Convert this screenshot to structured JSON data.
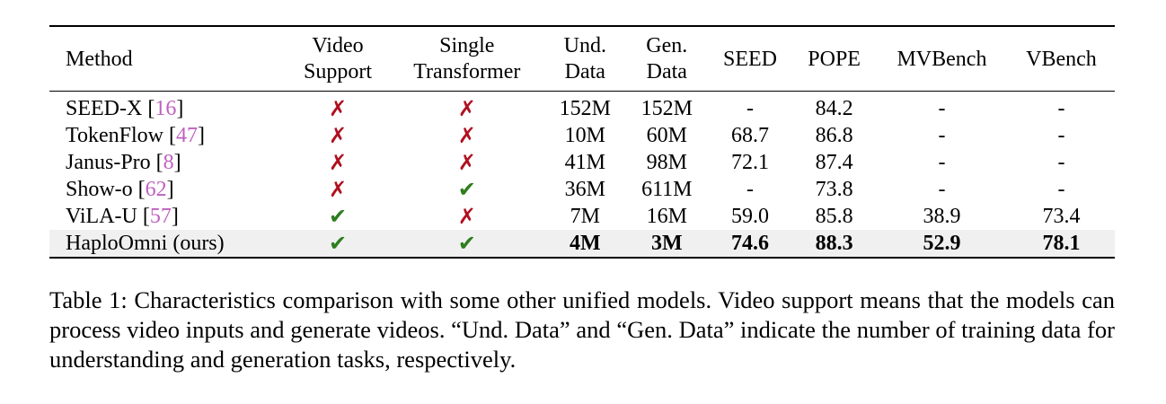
{
  "table": {
    "headers": [
      {
        "line1": "Method",
        "line2": ""
      },
      {
        "line1": "Video",
        "line2": "Support"
      },
      {
        "line1": "Single",
        "line2": "Transformer"
      },
      {
        "line1": "Und.",
        "line2": "Data"
      },
      {
        "line1": "Gen.",
        "line2": "Data"
      },
      {
        "line1": "SEED",
        "line2": ""
      },
      {
        "line1": "POPE",
        "line2": ""
      },
      {
        "line1": "MVBench",
        "line2": ""
      },
      {
        "line1": "VBench",
        "line2": ""
      }
    ],
    "rows": [
      {
        "method": "SEED-X [",
        "ref": "16",
        "close": "]",
        "video": "✗",
        "single": "✗",
        "und": "152M",
        "gen": "152M",
        "seed": "-",
        "pope": "84.2",
        "mvbench": "-",
        "vbench": "-"
      },
      {
        "method": "TokenFlow [",
        "ref": "47",
        "close": "]",
        "video": "✗",
        "single": "✗",
        "und": "10M",
        "gen": "60M",
        "seed": "68.7",
        "pope": "86.8",
        "mvbench": "-",
        "vbench": "-"
      },
      {
        "method": "Janus-Pro [",
        "ref": "8",
        "close": "]",
        "video": "✗",
        "single": "✗",
        "und": "41M",
        "gen": "98M",
        "seed": "72.1",
        "pope": "87.4",
        "mvbench": "-",
        "vbench": "-"
      },
      {
        "method": "Show-o [",
        "ref": "62",
        "close": "]",
        "video": "✗",
        "single": "✔",
        "und": "36M",
        "gen": "611M",
        "seed": "-",
        "pope": "73.8",
        "mvbench": "-",
        "vbench": "-"
      },
      {
        "method": "ViLA-U [",
        "ref": "57",
        "close": "]",
        "video": "✔",
        "single": "✗",
        "und": "7M",
        "gen": "16M",
        "seed": "59.0",
        "pope": "85.8",
        "mvbench": "38.9",
        "vbench": "73.4"
      },
      {
        "method": "HaploOmni (ours)",
        "ref": "",
        "close": "",
        "video": "✔",
        "single": "✔",
        "und": "4M",
        "gen": "3M",
        "seed": "74.6",
        "pope": "88.3",
        "mvbench": "52.9",
        "vbench": "78.1"
      }
    ]
  },
  "caption": "Table 1: Characteristics comparison with some other unified models. Video support means that the models can process video inputs and generate videos. “Und. Data” and “Gen. Data” indicate the number of training data for understanding and generation tasks, respectively.",
  "colors": {
    "cross": "#b01020",
    "check": "#2e7d1e",
    "ref": "#c060c0",
    "highlight_row": "#f0f0f0"
  }
}
